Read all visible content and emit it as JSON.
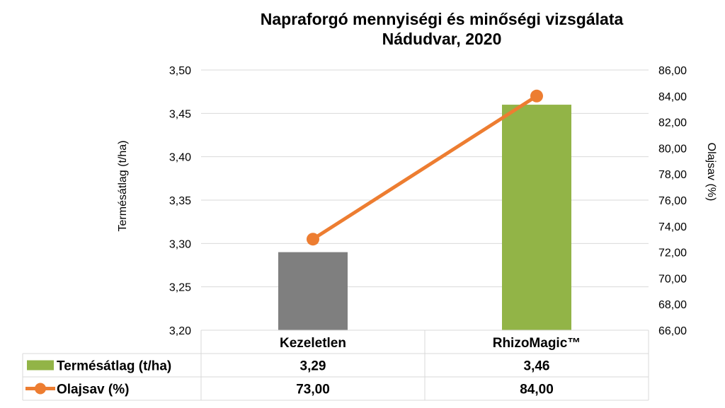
{
  "chart_data": {
    "type": "bar",
    "title": [
      "Napraforgó mennyiségi és minőségi vizsgálata",
      "Nádudvar, 2020"
    ],
    "categories": [
      "Kezeletlen",
      "RhizoMagic™"
    ],
    "series": [
      {
        "name": "Termésátlag (t/ha)",
        "type": "bar",
        "axis": "left",
        "values": [
          3.29,
          3.46
        ],
        "display_values": [
          "3,29",
          "3,46"
        ],
        "colors": [
          "#7f7f7f",
          "#92b447"
        ]
      },
      {
        "name": "Olajsav (%)",
        "type": "line",
        "axis": "right",
        "values": [
          73.0,
          84.0
        ],
        "display_values": [
          "73,00",
          "84,00"
        ],
        "color": "#ed7d31"
      }
    ],
    "y_left": {
      "label": "Termésátlag (t/ha)",
      "lim": [
        3.2,
        3.5
      ],
      "ticks": [
        3.2,
        3.25,
        3.3,
        3.35,
        3.4,
        3.45,
        3.5
      ],
      "tick_labels": [
        "3,20",
        "3,25",
        "3,30",
        "3,35",
        "3,40",
        "3,45",
        "3,50"
      ]
    },
    "y_right": {
      "label": "Olajsav (%)",
      "lim": [
        66,
        86
      ],
      "ticks": [
        66,
        68,
        70,
        72,
        74,
        76,
        78,
        80,
        82,
        84,
        86
      ],
      "tick_labels": [
        "66,00",
        "68,00",
        "70,00",
        "72,00",
        "74,00",
        "76,00",
        "78,00",
        "80,00",
        "82,00",
        "84,00",
        "86,00"
      ]
    },
    "grid": true,
    "legend": "data-table",
    "data_table": true
  },
  "colors": {
    "bar_untreated": "#7f7f7f",
    "bar_treated": "#92b447",
    "line": "#ed7d31",
    "grid": "#d9d9d9"
  }
}
